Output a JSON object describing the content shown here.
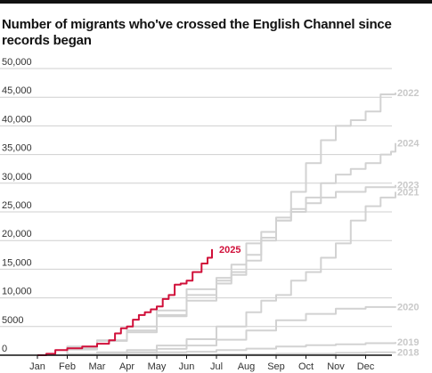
{
  "colors": {
    "highlight": "#d0103a",
    "past_years": "#d2d2d2",
    "label_past": "#c9c9c9",
    "axis": "#111111",
    "grid": "#cfcfcf"
  },
  "chart_data": {
    "type": "line",
    "title": "Number of migrants who've crossed the English Channel since records began",
    "xlabel": "",
    "ylabel": "",
    "x_unit": "month (Jan 1 = 1.0)",
    "xlim": [
      1,
      13
    ],
    "ylim": [
      0,
      50000
    ],
    "yticks": [
      0,
      5000,
      10000,
      15000,
      20000,
      25000,
      30000,
      35000,
      40000,
      45000,
      50000
    ],
    "ytick_labels": [
      "0",
      "5000",
      "10,000",
      "15,000",
      "20,000",
      "25,000",
      "30,000",
      "35,000",
      "40,000",
      "45,000",
      "50,000"
    ],
    "xtick_labels": [
      "Jan",
      "Feb",
      "Mar",
      "Apr",
      "May",
      "Jun",
      "Jul",
      "Aug",
      "Sep",
      "Oct",
      "Nov",
      "Dec"
    ],
    "grid": true,
    "legend": "direct labels at line ends",
    "series": [
      {
        "name": "2018",
        "highlight": false,
        "points": [
          [
            1.0,
            0
          ],
          [
            3.0,
            30
          ],
          [
            5.0,
            100
          ],
          [
            7.0,
            150
          ],
          [
            9.0,
            250
          ],
          [
            11.0,
            400
          ],
          [
            12.0,
            500
          ],
          [
            13.0,
            550
          ]
        ]
      },
      {
        "name": "2019",
        "highlight": false,
        "points": [
          [
            1.0,
            0
          ],
          [
            2.0,
            100
          ],
          [
            3.0,
            250
          ],
          [
            4.0,
            400
          ],
          [
            5.0,
            500
          ],
          [
            6.0,
            600
          ],
          [
            7.0,
            900
          ],
          [
            8.0,
            1150
          ],
          [
            9.0,
            1500
          ],
          [
            10.0,
            1750
          ],
          [
            11.0,
            1900
          ],
          [
            12.0,
            2100
          ],
          [
            13.0,
            2300
          ]
        ]
      },
      {
        "name": "2020",
        "highlight": false,
        "points": [
          [
            1.0,
            0
          ],
          [
            2.0,
            200
          ],
          [
            3.0,
            300
          ],
          [
            4.0,
            500
          ],
          [
            5.0,
            1100
          ],
          [
            6.0,
            1700
          ],
          [
            7.0,
            2700
          ],
          [
            8.0,
            4300
          ],
          [
            9.0,
            6100
          ],
          [
            10.0,
            7200
          ],
          [
            11.0,
            8100
          ],
          [
            12.0,
            8400
          ],
          [
            13.0,
            8500
          ]
        ]
      },
      {
        "name": "2021",
        "highlight": false,
        "points": [
          [
            1.0,
            0
          ],
          [
            2.0,
            200
          ],
          [
            3.0,
            500
          ],
          [
            4.0,
            900
          ],
          [
            5.0,
            1700
          ],
          [
            6.0,
            2800
          ],
          [
            7.0,
            5000
          ],
          [
            8.0,
            7500
          ],
          [
            8.5,
            9500
          ],
          [
            9.0,
            10500
          ],
          [
            9.5,
            13000
          ],
          [
            10.0,
            14500
          ],
          [
            10.5,
            17000
          ],
          [
            11.0,
            19500
          ],
          [
            11.5,
            23500
          ],
          [
            12.0,
            26000
          ],
          [
            12.5,
            27500
          ],
          [
            13.0,
            28500
          ]
        ]
      },
      {
        "name": "2022",
        "highlight": false,
        "points": [
          [
            1.0,
            0
          ],
          [
            2.0,
            1500
          ],
          [
            3.0,
            2500
          ],
          [
            4.0,
            4300
          ],
          [
            5.0,
            7000
          ],
          [
            6.0,
            10500
          ],
          [
            7.0,
            13000
          ],
          [
            7.5,
            14500
          ],
          [
            8.0,
            17500
          ],
          [
            8.5,
            20500
          ],
          [
            9.0,
            24000
          ],
          [
            9.5,
            28500
          ],
          [
            10.0,
            33500
          ],
          [
            10.5,
            37500
          ],
          [
            11.0,
            40000
          ],
          [
            11.5,
            41000
          ],
          [
            12.0,
            42500
          ],
          [
            12.5,
            45500
          ],
          [
            13.0,
            45800
          ]
        ]
      },
      {
        "name": "2023",
        "highlight": false,
        "points": [
          [
            1.0,
            0
          ],
          [
            2.0,
            1200
          ],
          [
            3.0,
            2500
          ],
          [
            4.0,
            4000
          ],
          [
            5.0,
            6800
          ],
          [
            6.0,
            9500
          ],
          [
            7.0,
            12500
          ],
          [
            7.5,
            14000
          ],
          [
            8.0,
            16500
          ],
          [
            8.5,
            20000
          ],
          [
            9.0,
            23500
          ],
          [
            9.5,
            25000
          ],
          [
            10.0,
            26500
          ],
          [
            10.5,
            27500
          ],
          [
            11.0,
            28500
          ],
          [
            12.0,
            29300
          ],
          [
            13.0,
            29700
          ]
        ]
      },
      {
        "name": "2024",
        "highlight": false,
        "points": [
          [
            1.0,
            0
          ],
          [
            2.0,
            1000
          ],
          [
            3.0,
            2600
          ],
          [
            4.0,
            5000
          ],
          [
            5.0,
            7800
          ],
          [
            6.0,
            11500
          ],
          [
            7.0,
            13500
          ],
          [
            7.5,
            15800
          ],
          [
            8.0,
            19500
          ],
          [
            8.5,
            21500
          ],
          [
            9.0,
            23500
          ],
          [
            9.5,
            25500
          ],
          [
            10.0,
            27500
          ],
          [
            10.5,
            30000
          ],
          [
            11.0,
            31500
          ],
          [
            11.5,
            32500
          ],
          [
            12.0,
            33500
          ],
          [
            12.5,
            35000
          ],
          [
            12.85,
            35500
          ],
          [
            13.0,
            37000
          ]
        ]
      },
      {
        "name": "2025",
        "highlight": true,
        "points": [
          [
            1.0,
            0
          ],
          [
            1.3,
            250
          ],
          [
            1.6,
            900
          ],
          [
            2.0,
            1200
          ],
          [
            2.5,
            1500
          ],
          [
            3.0,
            2000
          ],
          [
            3.4,
            2600
          ],
          [
            3.6,
            3800
          ],
          [
            3.8,
            4700
          ],
          [
            4.0,
            5000
          ],
          [
            4.2,
            6200
          ],
          [
            4.4,
            7000
          ],
          [
            4.6,
            7500
          ],
          [
            4.8,
            8000
          ],
          [
            5.0,
            8500
          ],
          [
            5.2,
            9800
          ],
          [
            5.4,
            10500
          ],
          [
            5.6,
            12300
          ],
          [
            5.8,
            12500
          ],
          [
            6.0,
            13000
          ],
          [
            6.2,
            14500
          ],
          [
            6.5,
            16000
          ],
          [
            6.7,
            17000
          ],
          [
            6.85,
            18500
          ]
        ]
      }
    ]
  }
}
